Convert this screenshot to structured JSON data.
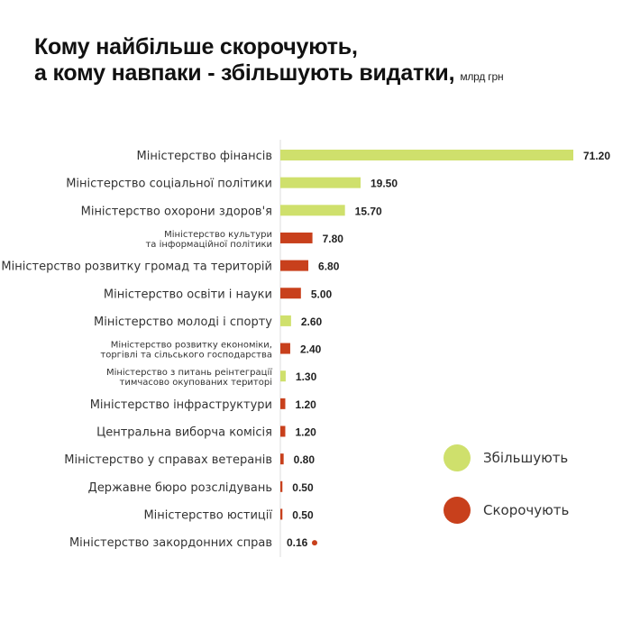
{
  "chart_data": {
    "type": "bar",
    "orientation": "horizontal",
    "title_line1": "Кому найбільше скорочують,",
    "title_line2": "а кому навпаки - збільшують видатки,",
    "unit": "млрд грн",
    "categories": [
      [
        "Міністерство фінансів"
      ],
      [
        "Міністерство соціальної політики"
      ],
      [
        "Міністерство охорони здоров'я"
      ],
      [
        "Міністерство культури",
        "та інформаційної політики"
      ],
      [
        "Міністерство розвитку громад та територій"
      ],
      [
        "Міністерство освіти і науки"
      ],
      [
        "Міністерство молоді і спорту"
      ],
      [
        "Міністерство розвитку економіки,",
        "торгівлі та сільського господарства"
      ],
      [
        "Міністерство з питань  реінтеграції",
        "тимчасово окупованих територі"
      ],
      [
        "Міністерство інфраструктури"
      ],
      [
        "Центральна виборча комісія"
      ],
      [
        "Міністерство у справах ветеранів"
      ],
      [
        "Державне бюро розслідувань"
      ],
      [
        "Міністерство юстиції"
      ],
      [
        "Міністерство закордонних справ"
      ]
    ],
    "values": [
      71.2,
      19.5,
      15.7,
      7.8,
      6.8,
      5.0,
      2.6,
      2.4,
      1.3,
      1.2,
      1.2,
      0.8,
      0.5,
      0.5,
      0.16
    ],
    "value_labels": [
      "71.20",
      "19.50",
      "15.70",
      "7.80",
      "6.80",
      "5.00",
      "2.60",
      "2.40",
      "1.30",
      "1.20",
      "1.20",
      "0.80",
      "0.50",
      "0.50",
      "0.16"
    ],
    "direction": [
      "up",
      "up",
      "up",
      "down",
      "down",
      "down",
      "up",
      "down",
      "up",
      "down",
      "down",
      "down",
      "down",
      "down",
      "down"
    ],
    "legend": [
      {
        "key": "up",
        "label": "Збільшують",
        "color": "#cfe06c"
      },
      {
        "key": "down",
        "label": "Скорочують",
        "color": "#c8401c"
      }
    ],
    "xlim": [
      0,
      71.2
    ]
  }
}
